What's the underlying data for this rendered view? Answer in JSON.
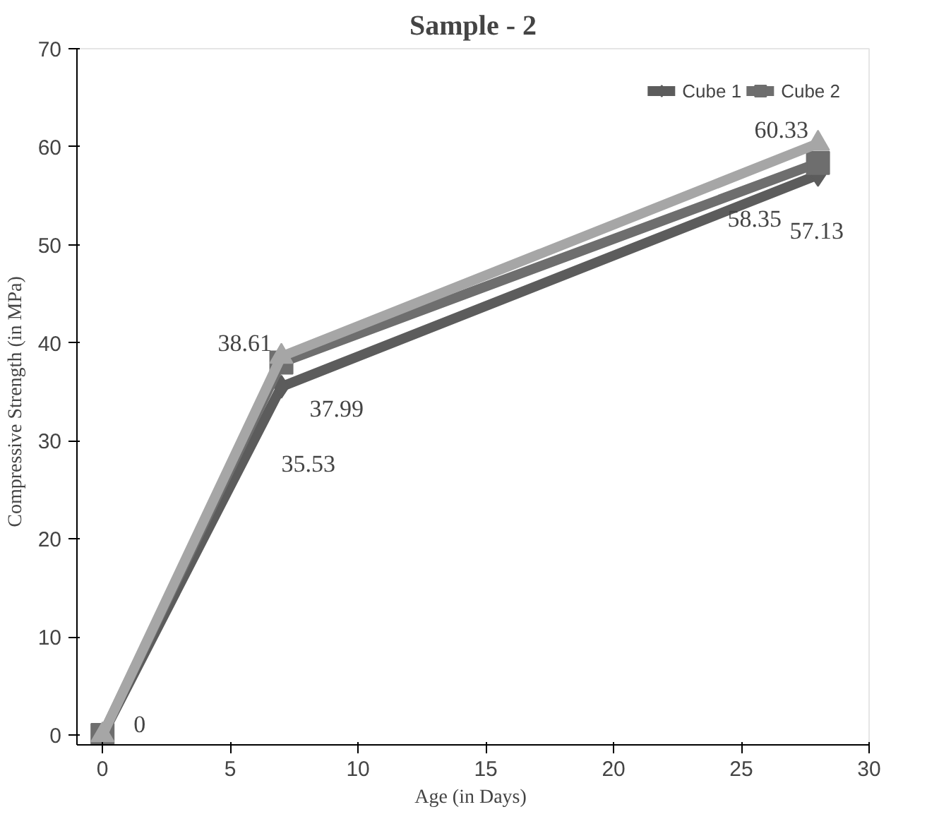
{
  "chart_data": {
    "type": "line",
    "title": "Sample - 2",
    "xlabel": "Age  (in Days)",
    "ylabel": "Compressive Strength   (in MPa)",
    "x": [
      0,
      7,
      28
    ],
    "series": [
      {
        "name": "Cube 1",
        "color": "#5c5c5c",
        "values": [
          0,
          35.53,
          57.13
        ],
        "marker": "diamond",
        "value_labels": [
          null,
          "35.53",
          "57.13"
        ]
      },
      {
        "name": "Cube 2",
        "color": "#6e6e6e",
        "values": [
          0,
          37.99,
          58.35
        ],
        "marker": "square",
        "value_labels": [
          "0",
          "37.99",
          "58.35"
        ]
      },
      {
        "color": "#a6a6a6",
        "values": [
          0,
          38.61,
          60.33
        ],
        "marker": "triangle",
        "value_labels": [
          null,
          "38.61",
          "60.33"
        ]
      }
    ],
    "xlim": [
      -1,
      30
    ],
    "xticks": [
      0,
      5,
      10,
      15,
      20,
      25,
      30
    ],
    "ylim": [
      -1,
      70
    ],
    "yticks": [
      0,
      10,
      20,
      30,
      40,
      50,
      60,
      70
    ],
    "grid": false,
    "legend": "top right",
    "line_style": "solid"
  }
}
